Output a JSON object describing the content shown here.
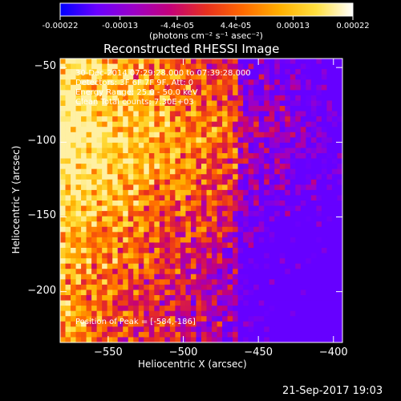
{
  "colorbar": {
    "tick_labels": [
      "-0.00022",
      "-0.00013",
      "-4.4e-05",
      "4.4e-05",
      "0.00013",
      "0.00022"
    ],
    "tick_values": [
      -0.00022,
      -0.00013,
      -4.4e-05,
      4.4e-05,
      0.00013,
      0.00022
    ],
    "range": [
      -0.00022,
      0.00022
    ],
    "units_label": "(photons cm⁻² s⁻¹ asec⁻²)",
    "colors": [
      "#0000ff",
      "#6a00ff",
      "#9b00c8",
      "#c4007a",
      "#e8301e",
      "#ff6a00",
      "#ffb000",
      "#ffe040",
      "#ffffff"
    ]
  },
  "chart_data": {
    "type": "heatmap",
    "title": "Reconstructed RHESSI Image",
    "xlabel": "Heliocentric X (arcsec)",
    "ylabel": "Heliocentric Y (arcsec)",
    "xlim": [
      -582,
      -394
    ],
    "ylim": [
      -234,
      -44
    ],
    "x_ticks": [
      -550,
      -500,
      -450,
      -400
    ],
    "x_tick_labels": [
      "−550",
      "−500",
      "−450",
      "−400"
    ],
    "y_ticks": [
      -50,
      -100,
      -150,
      -200
    ],
    "y_tick_labels": [
      "−50",
      "−100",
      "−150",
      "−200"
    ],
    "peak": [
      -584,
      -186
    ],
    "value_range": [
      -0.00022,
      0.00022
    ],
    "grid": false,
    "annotations": [
      "30-Dec-2014 07:29:28.000 to 07:39:28.000",
      "Detectors: 3F 6F 7F 9F, Att: 0",
      "Energy Range: 25.0 - 50.0 keV",
      "Clean   Total counts: 7.30E+03"
    ],
    "peak_label": "Position of Peak = [-584,-186]"
  },
  "footer": {
    "timestamp": "21-Sep-2017 19:03"
  }
}
